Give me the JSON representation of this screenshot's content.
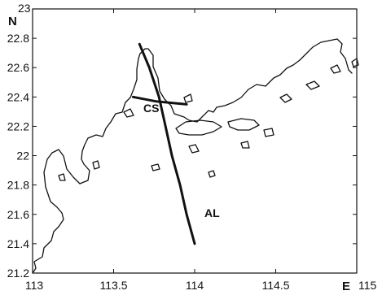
{
  "map": {
    "x_axis": {
      "ticks": [
        113,
        113.5,
        114,
        114.5,
        115
      ],
      "tick_labels": [
        "113",
        "113.5",
        "114",
        "114.5",
        "115"
      ],
      "direction_label": "E",
      "range": [
        113,
        115
      ]
    },
    "y_axis": {
      "ticks": [
        21.2,
        21.4,
        21.6,
        21.8,
        22,
        22.2,
        22.4,
        22.6,
        22.8,
        23
      ],
      "tick_labels": [
        "21.2",
        "21.4",
        "21.6",
        "21.8",
        "22",
        "22.2",
        "22.4",
        "22.6",
        "22.8",
        "23"
      ],
      "direction_label": "N",
      "range": [
        21.2,
        23
      ]
    },
    "tracks": [
      {
        "label": "AL",
        "points": [
          [
            113.66,
            22.76
          ],
          [
            113.72,
            22.6
          ],
          [
            113.78,
            22.4
          ],
          [
            113.82,
            22.2
          ],
          [
            113.86,
            22.0
          ],
          [
            113.91,
            21.8
          ],
          [
            113.95,
            21.6
          ],
          [
            114.0,
            21.4
          ]
        ]
      },
      {
        "label": "CS",
        "points": [
          [
            113.62,
            22.4
          ],
          [
            113.76,
            22.37
          ],
          [
            113.95,
            22.35
          ]
        ]
      }
    ],
    "colors": {
      "line": "#111111",
      "background": "#ffffff"
    }
  }
}
